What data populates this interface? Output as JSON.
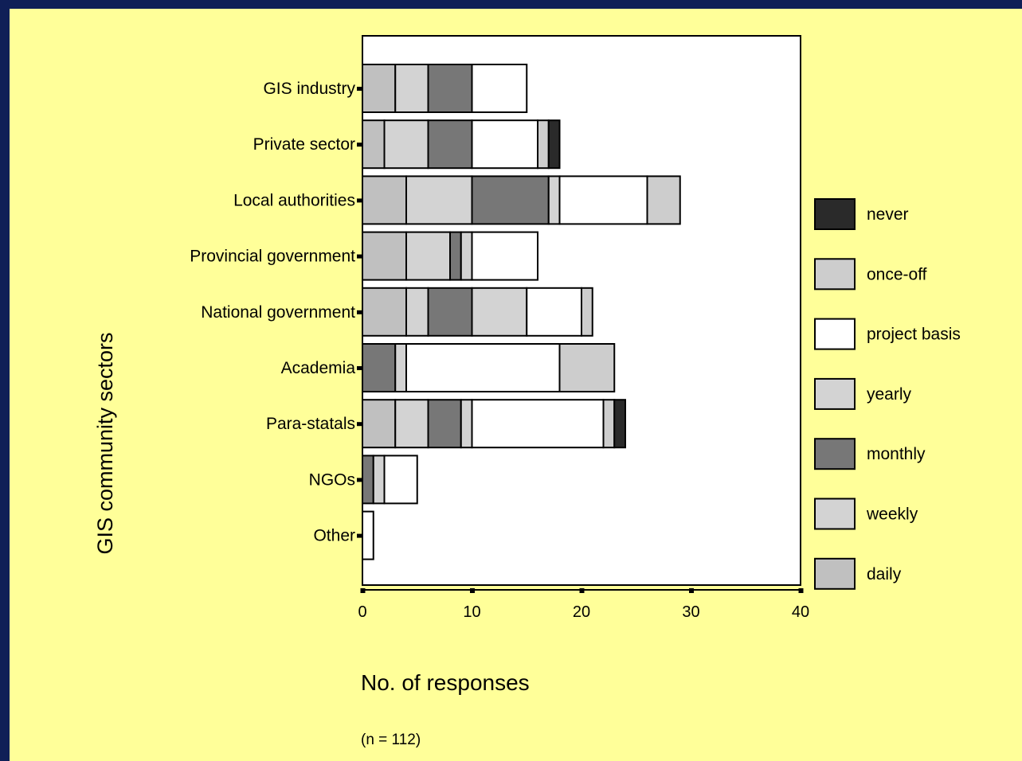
{
  "chart_data": {
    "type": "bar",
    "orientation": "horizontal",
    "stacked": true,
    "categories": [
      "GIS industry",
      "Private sector",
      "Local authorities",
      "Provincial government",
      "National government",
      "Academia",
      "Para-statals",
      "NGOs",
      "Other"
    ],
    "series": [
      {
        "name": "daily",
        "color": "#c0c0c0",
        "values": [
          3,
          2,
          4,
          4,
          4,
          0,
          3,
          0,
          0
        ]
      },
      {
        "name": "weekly",
        "color": "#d3d3d3",
        "values": [
          3,
          4,
          6,
          4,
          2,
          0,
          3,
          0,
          0
        ]
      },
      {
        "name": "monthly",
        "color": "#777777",
        "values": [
          4,
          4,
          7,
          1,
          4,
          3,
          3,
          1,
          0
        ]
      },
      {
        "name": "yearly",
        "color": "#d3d3d3",
        "values": [
          0,
          0,
          1,
          1,
          5,
          1,
          1,
          1,
          0
        ]
      },
      {
        "name": "project basis",
        "color": "#ffffff",
        "values": [
          5,
          6,
          8,
          6,
          5,
          14,
          12,
          3,
          1
        ]
      },
      {
        "name": "once-off",
        "color": "#cdcdcd",
        "values": [
          0,
          1,
          3,
          0,
          1,
          5,
          1,
          0,
          0
        ]
      },
      {
        "name": "never",
        "color": "#2a2a2a",
        "values": [
          0,
          1,
          0,
          0,
          0,
          0,
          1,
          0,
          0
        ]
      }
    ],
    "legend_order": [
      "never",
      "once-off",
      "project basis",
      "yearly",
      "monthly",
      "weekly",
      "daily"
    ],
    "legend_position": "right",
    "xlim": [
      0,
      40
    ],
    "xticks": [
      0,
      10,
      20,
      30,
      40
    ],
    "xlabel": "No. of responses",
    "ylabel": "GIS community sectors",
    "note": "(n = 112)",
    "grid": false
  },
  "colors": {
    "frame": "#0f1f57",
    "background": "#ffff99",
    "plot_area": "#ffffff"
  }
}
